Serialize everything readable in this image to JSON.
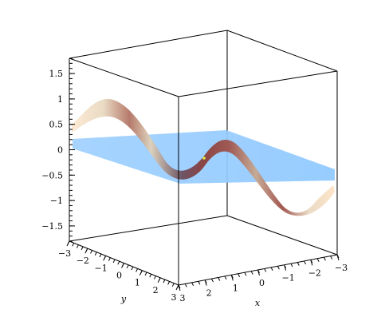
{
  "chart_data": {
    "type": "surface3d",
    "title": "",
    "surfaces": [
      {
        "kind": "plane",
        "color": "#8ec8ff",
        "z": 0
      },
      {
        "kind": "sine-wave",
        "amplitude": 1,
        "color_low": "#fff0d8",
        "color_high": "#8a3a36"
      }
    ],
    "highlight_point": {
      "x": 0,
      "y": 0,
      "z": 0,
      "color": "#ddee44"
    },
    "axes": {
      "x": {
        "label": "x",
        "range": [
          -3,
          3
        ],
        "ticks": [
          "3",
          "2",
          "1",
          "0",
          "−1",
          "−2",
          "−3"
        ]
      },
      "y": {
        "label": "y",
        "range": [
          -3,
          3
        ],
        "ticks": [
          "−3",
          "−2",
          "−1",
          "0",
          "1",
          "2",
          "3"
        ]
      },
      "z": {
        "range": [
          -1.8,
          1.8
        ],
        "ticks": [
          "1.5",
          "1",
          "0.5",
          "0",
          "−0.5",
          "−1",
          "−1.5"
        ]
      }
    },
    "box": true,
    "grid": false
  }
}
